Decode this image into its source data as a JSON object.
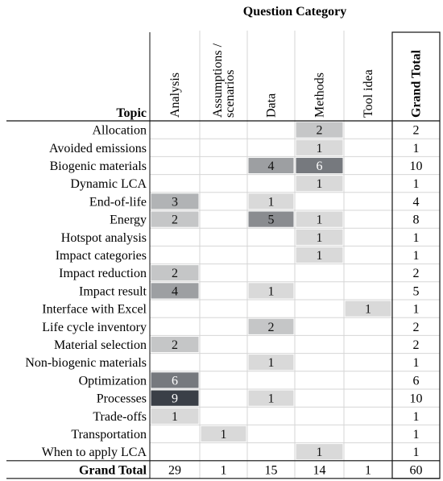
{
  "chart_data": {
    "type": "heatmap",
    "title": "Question Category",
    "row_header": "Topic",
    "columns": [
      "Analysis",
      "Assumptions / scenarios",
      "Data",
      "Methods",
      "Tool idea"
    ],
    "column_label_lines": [
      [
        "Analysis"
      ],
      [
        "Assumptions /",
        "scenarios"
      ],
      [
        "Data"
      ],
      [
        "Methods"
      ],
      [
        "Tool idea"
      ]
    ],
    "total_label": "Grand Total",
    "rows": [
      {
        "label": "Allocation",
        "values": [
          null,
          null,
          null,
          2,
          null
        ],
        "total": 2
      },
      {
        "label": "Avoided emissions",
        "values": [
          null,
          null,
          null,
          1,
          null
        ],
        "total": 1
      },
      {
        "label": "Biogenic materials",
        "values": [
          null,
          null,
          4,
          6,
          null
        ],
        "total": 10
      },
      {
        "label": "Dynamic LCA",
        "values": [
          null,
          null,
          null,
          1,
          null
        ],
        "total": 1
      },
      {
        "label": "End-of-life",
        "values": [
          3,
          null,
          1,
          null,
          null
        ],
        "total": 4
      },
      {
        "label": "Energy",
        "values": [
          2,
          null,
          5,
          1,
          null
        ],
        "total": 8
      },
      {
        "label": "Hotspot analysis",
        "values": [
          null,
          null,
          null,
          1,
          null
        ],
        "total": 1
      },
      {
        "label": "Impact categories",
        "values": [
          null,
          null,
          null,
          1,
          null
        ],
        "total": 1
      },
      {
        "label": "Impact reduction",
        "values": [
          2,
          null,
          null,
          null,
          null
        ],
        "total": 2
      },
      {
        "label": "Impact result",
        "values": [
          4,
          null,
          1,
          null,
          null
        ],
        "total": 5
      },
      {
        "label": "Interface with Excel",
        "values": [
          null,
          null,
          null,
          null,
          1
        ],
        "total": 1
      },
      {
        "label": "Life cycle inventory",
        "values": [
          null,
          null,
          2,
          null,
          null
        ],
        "total": 2
      },
      {
        "label": "Material selection",
        "values": [
          2,
          null,
          null,
          null,
          null
        ],
        "total": 2
      },
      {
        "label": "Non-biogenic materials",
        "values": [
          null,
          null,
          1,
          null,
          null
        ],
        "total": 1
      },
      {
        "label": "Optimization",
        "values": [
          6,
          null,
          null,
          null,
          null
        ],
        "total": 6
      },
      {
        "label": "Processes",
        "values": [
          9,
          null,
          1,
          null,
          null
        ],
        "total": 10
      },
      {
        "label": "Trade-offs",
        "values": [
          1,
          null,
          null,
          null,
          null
        ],
        "total": 1
      },
      {
        "label": "Transportation",
        "values": [
          null,
          1,
          null,
          null,
          null
        ],
        "total": 1
      },
      {
        "label": "When to apply LCA",
        "values": [
          null,
          null,
          null,
          1,
          null
        ],
        "total": 1
      }
    ],
    "column_totals": [
      29,
      1,
      15,
      14,
      1
    ],
    "grand_total": 60,
    "colors": {
      "low": "#d9d9d9",
      "high": "#3a3f47",
      "grid": "#d6d6d6",
      "border": "#111111"
    }
  }
}
